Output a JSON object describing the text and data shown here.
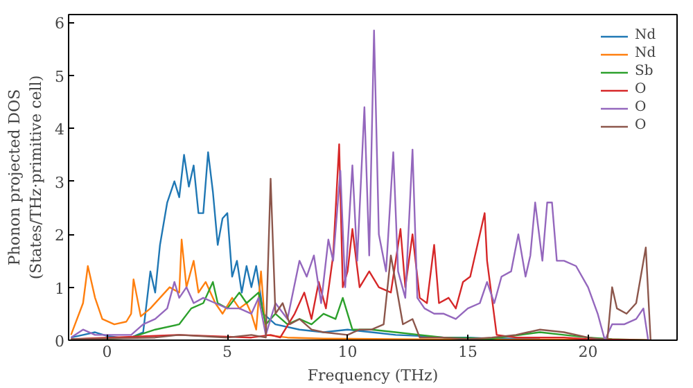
{
  "chart_data": {
    "type": "line",
    "xlabel": "Frequency (THz)",
    "ylabel": "Phonon projected DOS\n(States/THz·primitive cell)",
    "xlim": [
      -1.6,
      23.7
    ],
    "ylim": [
      0,
      6.15
    ],
    "xticks": [
      0,
      5,
      10,
      15,
      20
    ],
    "yticks": [
      0,
      1,
      2,
      3,
      4,
      5,
      6
    ],
    "legend": "top right",
    "grid": false,
    "series": [
      {
        "name": "Nd",
        "color": "#1f77b4",
        "x": [
          -1.5,
          -1,
          -0.5,
          0,
          0.5,
          1,
          1.5,
          1.8,
          2.0,
          2.2,
          2.5,
          2.8,
          3.0,
          3.2,
          3.4,
          3.6,
          3.8,
          4.0,
          4.2,
          4.4,
          4.6,
          4.8,
          5.0,
          5.2,
          5.4,
          5.6,
          5.8,
          6.0,
          6.2,
          6.5,
          7,
          8,
          9,
          10,
          11,
          12,
          13,
          14,
          15,
          16,
          17,
          18
        ],
        "values": [
          0.05,
          0.1,
          0.15,
          0.08,
          0.05,
          0.05,
          0.15,
          1.3,
          0.9,
          1.8,
          2.6,
          3.0,
          2.7,
          3.5,
          2.9,
          3.3,
          2.4,
          2.4,
          3.55,
          2.8,
          1.8,
          2.3,
          2.4,
          1.2,
          1.5,
          0.9,
          1.4,
          1.0,
          1.4,
          0.5,
          0.3,
          0.2,
          0.15,
          0.2,
          0.15,
          0.1,
          0.08,
          0.05,
          0.05,
          0.03,
          0.03,
          0.02
        ]
      },
      {
        "name": "Nd",
        "color": "#ff7f0e",
        "x": [
          -1.5,
          -1.0,
          -0.8,
          -0.5,
          -0.2,
          0.3,
          0.8,
          1.0,
          1.1,
          1.4,
          1.8,
          2.2,
          2.6,
          3.0,
          3.1,
          3.3,
          3.6,
          3.8,
          4.1,
          4.5,
          4.8,
          5.2,
          5.5,
          5.8,
          6.0,
          6.2,
          6.4,
          6.6,
          7.5,
          9,
          12,
          15,
          20,
          22.5
        ],
        "values": [
          0.1,
          0.7,
          1.4,
          0.8,
          0.4,
          0.3,
          0.35,
          0.5,
          1.15,
          0.45,
          0.6,
          0.8,
          1.0,
          0.9,
          1.9,
          1.0,
          1.5,
          0.9,
          1.1,
          0.7,
          0.5,
          0.8,
          0.6,
          0.7,
          0.5,
          0.2,
          1.3,
          0.1,
          0.05,
          0.03,
          0.02,
          0.01,
          0.01,
          0
        ]
      },
      {
        "name": "Sb",
        "color": "#2ca02c",
        "x": [
          -1.5,
          0,
          1,
          2,
          3,
          3.5,
          4,
          4.4,
          4.6,
          5.0,
          5.5,
          5.8,
          6.3,
          6.6,
          7.0,
          7.5,
          8,
          8.5,
          9,
          9.5,
          9.8,
          10.2,
          11,
          12,
          13,
          14,
          16,
          18,
          19,
          20,
          21,
          22.5
        ],
        "values": [
          0.02,
          0.03,
          0.05,
          0.2,
          0.3,
          0.6,
          0.7,
          1.1,
          0.7,
          0.6,
          0.9,
          0.7,
          0.9,
          0.3,
          0.5,
          0.3,
          0.4,
          0.3,
          0.5,
          0.4,
          0.8,
          0.2,
          0.2,
          0.15,
          0.1,
          0.05,
          0.03,
          0.15,
          0.1,
          0.05,
          0.02,
          0
        ]
      },
      {
        "name": "O",
        "color": "#d62728",
        "x": [
          -1.5,
          3,
          6,
          6.8,
          7.2,
          7.8,
          8.2,
          8.5,
          8.8,
          9.1,
          9.4,
          9.65,
          9.8,
          10.0,
          10.2,
          10.5,
          10.9,
          11.3,
          11.8,
          12.2,
          12.4,
          12.7,
          13.0,
          13.3,
          13.6,
          13.8,
          14.2,
          14.5,
          14.8,
          15.1,
          15.4,
          15.7,
          15.8,
          16.2,
          17,
          19,
          20,
          22.5
        ],
        "values": [
          0.02,
          0.1,
          0.05,
          0.1,
          0.05,
          0.5,
          0.9,
          0.4,
          1.1,
          0.6,
          1.6,
          3.7,
          1.0,
          1.3,
          2.1,
          1.0,
          1.3,
          1.0,
          0.9,
          2.1,
          1.0,
          2.0,
          0.8,
          0.7,
          1.8,
          0.7,
          0.8,
          0.6,
          1.1,
          1.2,
          1.8,
          2.4,
          1.5,
          0.1,
          0.05,
          0.05,
          0.02,
          0
        ]
      },
      {
        "name": "O",
        "color": "#9467bd",
        "x": [
          -1.5,
          -1,
          -0.5,
          0,
          1,
          1.5,
          2,
          2.5,
          2.8,
          3.0,
          3.3,
          3.6,
          4.0,
          4.5,
          5.0,
          5.5,
          6,
          6.3,
          6.6,
          7.0,
          7.5,
          8,
          8.3,
          8.6,
          8.9,
          9.2,
          9.4,
          9.7,
          9.9,
          10.2,
          10.4,
          10.7,
          10.9,
          11.1,
          11.3,
          11.6,
          11.9,
          12.1,
          12.4,
          12.7,
          12.9,
          13.2,
          13.6,
          14,
          14.5,
          15,
          15.5,
          15.8,
          16.1,
          16.4,
          16.8,
          17.1,
          17.4,
          17.6,
          17.8,
          18.1,
          18.3,
          18.5,
          18.7,
          19,
          19.5,
          20,
          20.4,
          20.7,
          21.0,
          21.5,
          22,
          22.3,
          22.5
        ],
        "values": [
          0.05,
          0.2,
          0.1,
          0.1,
          0.1,
          0.3,
          0.4,
          0.6,
          1.1,
          0.8,
          1.0,
          0.7,
          0.8,
          0.7,
          0.6,
          0.6,
          0.5,
          0.8,
          0.1,
          0.7,
          0.4,
          1.5,
          1.2,
          1.6,
          0.7,
          1.9,
          1.5,
          3.2,
          1.0,
          3.3,
          1.5,
          4.4,
          1.6,
          5.85,
          2.0,
          1.3,
          3.55,
          1.3,
          0.8,
          3.6,
          0.8,
          0.6,
          0.5,
          0.5,
          0.4,
          0.6,
          0.7,
          1.1,
          0.7,
          1.2,
          1.3,
          2.0,
          1.2,
          1.6,
          2.6,
          1.5,
          2.6,
          2.6,
          1.5,
          1.5,
          1.4,
          1.0,
          0.5,
          0.0,
          0.3,
          0.3,
          0.4,
          0.6,
          0.0
        ]
      },
      {
        "name": "O",
        "color": "#8c564b",
        "x": [
          -1.5,
          2,
          3,
          5,
          6,
          6.6,
          6.8,
          7.0,
          7.3,
          7.6,
          8,
          8.5,
          9,
          10,
          10.5,
          11,
          11.5,
          11.8,
          12.3,
          12.7,
          13.0,
          14,
          15,
          16,
          17,
          17.5,
          18,
          19,
          20,
          20.8,
          21.0,
          21.2,
          21.6,
          22.0,
          22.4,
          22.6
        ],
        "values": [
          0.02,
          0.05,
          0.1,
          0.05,
          0.1,
          0.05,
          3.05,
          0.5,
          0.7,
          0.3,
          0.4,
          0.2,
          0.15,
          0.1,
          0.2,
          0.2,
          0.3,
          1.6,
          0.3,
          0.4,
          0.05,
          0.05,
          0.02,
          0.05,
          0.1,
          0.15,
          0.2,
          0.15,
          0.05,
          0,
          1.0,
          0.6,
          0.5,
          0.7,
          1.75,
          0
        ]
      }
    ]
  }
}
